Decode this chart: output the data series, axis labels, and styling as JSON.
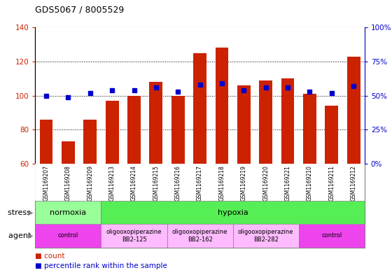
{
  "title": "GDS5067 / 8005529",
  "samples": [
    "GSM1169207",
    "GSM1169208",
    "GSM1169209",
    "GSM1169213",
    "GSM1169214",
    "GSM1169215",
    "GSM1169216",
    "GSM1169217",
    "GSM1169218",
    "GSM1169219",
    "GSM1169220",
    "GSM1169221",
    "GSM1169210",
    "GSM1169211",
    "GSM1169212"
  ],
  "counts": [
    86,
    73,
    86,
    97,
    100,
    108,
    100,
    125,
    128,
    106,
    109,
    110,
    101,
    94,
    123
  ],
  "percentiles": [
    50,
    49,
    52,
    54,
    54,
    56,
    53,
    58,
    59,
    54,
    56,
    56,
    53,
    52,
    57
  ],
  "ylim_left": [
    60,
    140
  ],
  "ylim_right": [
    0,
    100
  ],
  "yticks_left": [
    60,
    80,
    100,
    120,
    140
  ],
  "yticks_right": [
    0,
    25,
    50,
    75,
    100
  ],
  "bar_color": "#CC2200",
  "dot_color": "#0000CC",
  "tick_bg_color": "#d8d8d8",
  "stress_normoxia_color": "#99FF99",
  "stress_hypoxia_color": "#66EE66",
  "agent_control_color": "#FF55FF",
  "agent_oligo_color": "#FFBBFF",
  "stress_items": [
    {
      "label": "normoxia",
      "start": 0,
      "end": 3,
      "color": "#99FF99"
    },
    {
      "label": "hypoxia",
      "start": 3,
      "end": 15,
      "color": "#55EE55"
    }
  ],
  "agent_items": [
    {
      "label": "control",
      "start": 0,
      "end": 3,
      "color": "#EE44EE"
    },
    {
      "label": "oligooxopiperazine\nBB2-125",
      "start": 3,
      "end": 6,
      "color": "#FFBBFF"
    },
    {
      "label": "oligooxopiperazine\nBB2-162",
      "start": 6,
      "end": 9,
      "color": "#FFBBFF"
    },
    {
      "label": "oligooxopiperazine\nBB2-282",
      "start": 9,
      "end": 12,
      "color": "#FFBBFF"
    },
    {
      "label": "control",
      "start": 12,
      "end": 15,
      "color": "#EE44EE"
    }
  ]
}
